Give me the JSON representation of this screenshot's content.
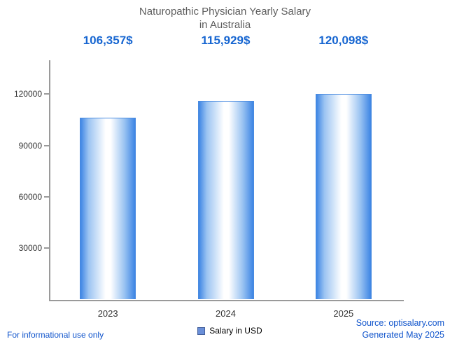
{
  "title": {
    "line1": "Naturopathic Physician Yearly Salary",
    "line2": "in Australia"
  },
  "legend": {
    "label": "Salary in USD",
    "swatch_color": "#6a8fd8"
  },
  "footer": {
    "note": "For informational use only",
    "source_line1": "Source: optisalary.com",
    "source_line2": "Generated May 2025"
  },
  "colors": {
    "accent_blue": "#1766d1",
    "bar_edge": "#4a8be0",
    "link_blue": "#1155cc",
    "axis_gray": "#9a9a9a"
  },
  "chart_data": {
    "type": "bar",
    "title": "Naturopathic Physician Yearly Salary in Australia",
    "categories": [
      "2023",
      "2024",
      "2025"
    ],
    "values": [
      106357,
      115929,
      120098
    ],
    "value_labels": [
      "106,357$",
      "115,929$",
      "120,098$"
    ],
    "series": [
      {
        "name": "Salary in USD",
        "values": [
          106357,
          115929,
          120098
        ]
      }
    ],
    "xlabel": "",
    "ylabel": "",
    "yticks": [
      30000,
      60000,
      90000,
      120000
    ],
    "ylim": [
      0,
      140000
    ],
    "grid": false,
    "legend_position": "bottom"
  }
}
